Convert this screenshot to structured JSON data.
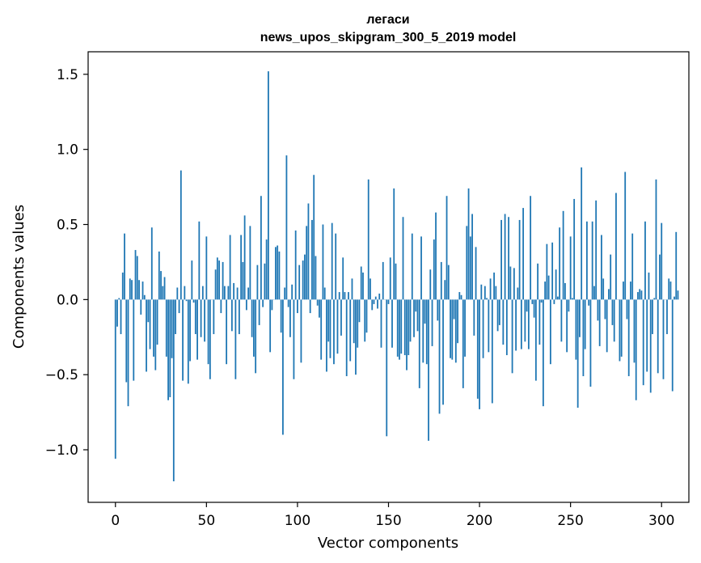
{
  "chart_data": {
    "type": "bar",
    "title": "легаси",
    "subtitle": "news_upos_skipgram_300_5_2019 model",
    "xlabel": "Vector components",
    "ylabel": "Components values",
    "xlim": [
      -15,
      315
    ],
    "ylim": [
      -1.35,
      1.65
    ],
    "xticks": [
      0,
      50,
      100,
      150,
      200,
      250,
      300
    ],
    "xtick_labels": [
      "0",
      "50",
      "100",
      "150",
      "200",
      "250",
      "300"
    ],
    "yticks": [
      -1.0,
      -0.5,
      0.0,
      0.5,
      1.0,
      1.5
    ],
    "ytick_labels": [
      "−1.0",
      "−0.5",
      "0.0",
      "0.5",
      "1.0",
      "1.5"
    ],
    "grid": false,
    "bar_color": "#1f77b4",
    "x_start": 0,
    "values": [
      -1.06,
      -0.18,
      0.01,
      -0.23,
      0.18,
      0.44,
      -0.55,
      -0.71,
      0.14,
      0.13,
      -0.54,
      0.33,
      0.29,
      0.13,
      -0.1,
      0.12,
      0.03,
      -0.48,
      -0.15,
      -0.33,
      0.48,
      -0.38,
      -0.47,
      -0.3,
      0.32,
      0.19,
      0.09,
      0.15,
      -0.38,
      -0.67,
      -0.65,
      -0.39,
      -1.21,
      -0.23,
      0.08,
      -0.09,
      0.86,
      -0.54,
      0.09,
      -0.01,
      -0.56,
      -0.41,
      0.26,
      -0.02,
      -0.23,
      -0.4,
      0.52,
      -0.25,
      0.09,
      -0.28,
      0.42,
      -0.43,
      -0.53,
      0.0,
      -0.23,
      0.2,
      0.28,
      0.26,
      -0.09,
      0.25,
      0.09,
      -0.43,
      0.09,
      0.43,
      -0.21,
      0.11,
      -0.53,
      0.08,
      -0.23,
      0.43,
      0.25,
      0.56,
      -0.07,
      0.08,
      0.49,
      -0.25,
      -0.38,
      -0.49,
      0.23,
      -0.17,
      0.69,
      -0.05,
      0.24,
      0.4,
      1.52,
      -0.35,
      -0.07,
      0.0,
      0.35,
      0.36,
      0.32,
      -0.22,
      -0.9,
      0.08,
      0.96,
      -0.05,
      -0.25,
      0.1,
      -0.53,
      0.46,
      -0.09,
      0.23,
      -0.42,
      0.26,
      0.3,
      0.49,
      0.64,
      -0.09,
      0.53,
      0.83,
      0.29,
      -0.04,
      -0.12,
      -0.4,
      0.5,
      0.08,
      -0.48,
      -0.28,
      -0.39,
      0.51,
      -0.43,
      0.44,
      -0.36,
      0.05,
      -0.24,
      0.28,
      0.05,
      -0.51,
      0.05,
      -0.41,
      0.14,
      -0.29,
      -0.5,
      -0.32,
      -0.15,
      0.22,
      0.18,
      -0.28,
      -0.22,
      0.8,
      0.14,
      -0.07,
      -0.03,
      0.02,
      -0.06,
      0.04,
      -0.32,
      0.25,
      0.0,
      -0.91,
      -0.03,
      0.28,
      -0.32,
      0.74,
      0.24,
      -0.38,
      -0.4,
      -0.36,
      0.55,
      -0.37,
      -0.47,
      -0.37,
      -0.28,
      0.44,
      -0.25,
      -0.08,
      -0.21,
      -0.59,
      0.42,
      -0.42,
      -0.16,
      -0.43,
      -0.94,
      0.2,
      -0.31,
      0.4,
      0.58,
      -0.14,
      -0.76,
      0.25,
      -0.7,
      0.13,
      0.69,
      0.23,
      -0.39,
      -0.4,
      -0.13,
      -0.42,
      -0.29,
      0.05,
      0.03,
      -0.59,
      -0.38,
      0.49,
      0.74,
      0.42,
      0.57,
      -0.24,
      0.35,
      -0.66,
      -0.73,
      0.1,
      -0.39,
      0.09,
      0.01,
      -0.35,
      0.14,
      -0.69,
      0.18,
      0.09,
      -0.21,
      -0.17,
      0.53,
      -0.3,
      0.57,
      -0.37,
      0.55,
      0.22,
      -0.49,
      0.21,
      -0.34,
      0.08,
      0.53,
      -0.33,
      0.61,
      -0.28,
      -0.08,
      -0.33,
      0.69,
      -0.03,
      -0.12,
      -0.54,
      0.24,
      -0.3,
      -0.02,
      -0.71,
      0.12,
      0.37,
      0.16,
      -0.43,
      0.38,
      -0.03,
      0.2,
      0.02,
      0.48,
      -0.28,
      0.59,
      0.11,
      -0.35,
      -0.08,
      0.42,
      0.01,
      0.67,
      -0.4,
      -0.72,
      -0.25,
      0.88,
      -0.51,
      -0.33,
      0.52,
      -0.04,
      -0.58,
      0.52,
      0.09,
      0.66,
      -0.14,
      -0.31,
      0.43,
      0.14,
      -0.13,
      -0.35,
      0.07,
      0.3,
      -0.17,
      -0.28,
      0.71,
      0.0,
      -0.41,
      -0.38,
      0.12,
      0.85,
      -0.13,
      -0.51,
      0.12,
      0.44,
      -0.42,
      -0.67,
      0.05,
      0.07,
      0.06,
      -0.57,
      0.52,
      -0.48,
      0.18,
      -0.62,
      -0.23,
      0.01,
      0.8,
      -0.49,
      0.3,
      0.51,
      -0.53,
      0.0,
      -0.23,
      0.14,
      0.12,
      -0.61,
      0.02,
      0.45,
      0.06
    ]
  }
}
